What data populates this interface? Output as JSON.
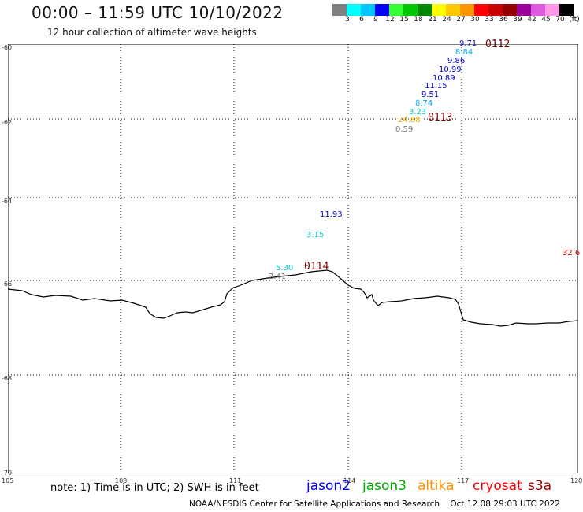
{
  "title": "00:00 – 11:59 UTC 10/10/2022",
  "subtitle": "12 hour collection of altimeter wave heights",
  "color_scale": {
    "colors": [
      "#808080",
      "#00ffff",
      "#00c8ff",
      "#0000ff",
      "#33ff33",
      "#00c800",
      "#008800",
      "#ffff00",
      "#ffc800",
      "#ff9600",
      "#ff0000",
      "#c80000",
      "#960000",
      "#9b009b",
      "#e05ae0",
      "#ff96e6",
      "#000000"
    ],
    "labels": [
      "3",
      "6",
      "9",
      "12",
      "15",
      "18",
      "21",
      "24",
      "27",
      "30",
      "33",
      "36",
      "39",
      "42",
      "45",
      "70",
      "(ft)"
    ]
  },
  "lat_labels": [
    "-60",
    "-62",
    "-64",
    "-66",
    "-68",
    "-70"
  ],
  "lon_labels": [
    "105",
    "108",
    "111",
    "114",
    "117",
    "120"
  ],
  "swh_values": [
    {
      "v": "9.71",
      "c": "#0000cc"
    },
    {
      "v": "8.84",
      "c": "#00aaff"
    },
    {
      "v": "9.86",
      "c": "#0000cc"
    },
    {
      "v": "10.99",
      "c": "#0000cc"
    },
    {
      "v": "10.89",
      "c": "#0000cc"
    },
    {
      "v": "11.15",
      "c": "#0000cc"
    },
    {
      "v": "9.51",
      "c": "#0000cc"
    },
    {
      "v": "8.74",
      "c": "#00aaff"
    },
    {
      "v": "3.23",
      "c": "#00cccc"
    },
    {
      "v": "24.88",
      "c": "#e6a800"
    },
    {
      "v": "0.59",
      "c": "#777777"
    },
    {
      "v": "11.93",
      "c": "#0000cc"
    },
    {
      "v": "3.15",
      "c": "#00cccc"
    },
    {
      "v": "5.30",
      "c": "#00cccc"
    },
    {
      "v": "2.41",
      "c": "#777777"
    },
    {
      "v": "32.6",
      "c": "#cc0000"
    }
  ],
  "pass_labels": [
    "0112",
    "0113",
    "0114"
  ],
  "note": "note: 1) Time is in UTC; 2) SWH is in feet",
  "satellites": [
    {
      "name": "jason2",
      "color": "#0000ff"
    },
    {
      "name": "jason3",
      "color": "#00aa00"
    },
    {
      "name": "altika",
      "color": "#ff9600"
    },
    {
      "name": "cryosat",
      "color": "#ff0000"
    },
    {
      "name": "s3a",
      "color": "#990000"
    }
  ],
  "footer": "NOAA/NESDIS Center for Satellite Applications and Research    Oct 12 08:29:03 UTC 2022"
}
